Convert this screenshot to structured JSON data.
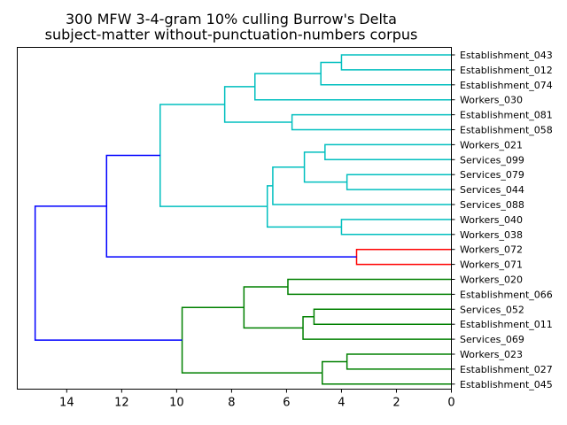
{
  "chart_data": {
    "type": "dendrogram",
    "orientation": "left",
    "title": [
      "300 MFW 3-4-gram 10% culling Burrow's Delta",
      "subject-matter without-punctuation-numbers corpus"
    ],
    "xlim": [
      15.8,
      0
    ],
    "x_ticks": [
      14,
      12,
      10,
      8,
      6,
      4,
      2,
      0
    ],
    "leaves": [
      "Establishment_043",
      "Establishment_012",
      "Establishment_074",
      "Workers_030",
      "Establishment_081",
      "Establishment_058",
      "Workers_021",
      "Services_099",
      "Services_079",
      "Services_044",
      "Services_088",
      "Workers_040",
      "Workers_038",
      "Workers_072",
      "Workers_071",
      "Workers_020",
      "Establishment_066",
      "Services_052",
      "Establishment_011",
      "Services_069",
      "Workers_023",
      "Establishment_027",
      "Establishment_045"
    ],
    "colors": {
      "cyan": "#00bfbf",
      "red": "#ff0000",
      "green": "#008000",
      "blue": "#0000ff"
    },
    "merges": [
      {
        "left": 0,
        "right": 1,
        "height": 4.0,
        "color": "cyan"
      },
      {
        "left": 23,
        "right": 2,
        "height": 4.75,
        "color": "cyan"
      },
      {
        "left": 24,
        "right": 3,
        "height": 7.15,
        "color": "cyan"
      },
      {
        "left": 4,
        "right": 5,
        "height": 5.8,
        "color": "cyan"
      },
      {
        "left": 25,
        "right": 26,
        "height": 8.25,
        "color": "cyan"
      },
      {
        "left": 6,
        "right": 7,
        "height": 4.6,
        "color": "cyan"
      },
      {
        "left": 8,
        "right": 9,
        "height": 3.8,
        "color": "cyan"
      },
      {
        "left": 28,
        "right": 29,
        "height": 5.35,
        "color": "cyan"
      },
      {
        "left": 30,
        "right": 10,
        "height": 6.5,
        "color": "cyan"
      },
      {
        "left": 11,
        "right": 12,
        "height": 4.0,
        "color": "cyan"
      },
      {
        "left": 31,
        "right": 32,
        "height": 6.7,
        "color": "cyan"
      },
      {
        "left": 27,
        "right": 33,
        "height": 10.6,
        "color": "cyan"
      },
      {
        "left": 13,
        "right": 14,
        "height": 3.45,
        "color": "red"
      },
      {
        "left": 34,
        "right": 35,
        "height": 12.55,
        "color": "blue"
      },
      {
        "left": 15,
        "right": 16,
        "height": 5.95,
        "color": "green"
      },
      {
        "left": 17,
        "right": 18,
        "height": 5.0,
        "color": "green"
      },
      {
        "left": 38,
        "right": 19,
        "height": 5.4,
        "color": "green"
      },
      {
        "left": 37,
        "right": 39,
        "height": 7.55,
        "color": "green"
      },
      {
        "left": 20,
        "right": 21,
        "height": 3.8,
        "color": "green"
      },
      {
        "left": 41,
        "right": 22,
        "height": 4.7,
        "color": "green"
      },
      {
        "left": 40,
        "right": 42,
        "height": 9.8,
        "color": "green"
      },
      {
        "left": 36,
        "right": 43,
        "height": 15.15,
        "color": "blue"
      }
    ]
  }
}
